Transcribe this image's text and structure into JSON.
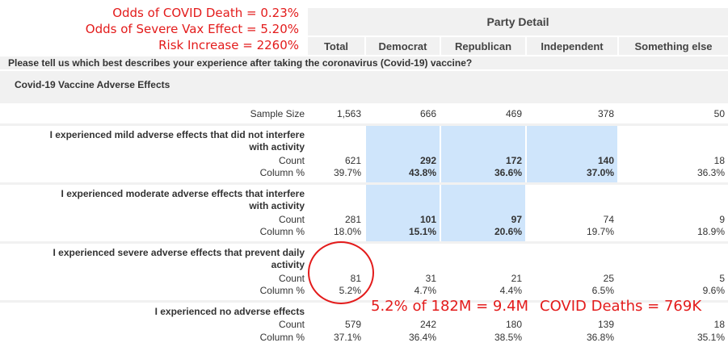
{
  "annotations": {
    "odds_death": "Odds of COVID Death = 0.23%",
    "odds_severe": "Odds of Severe Vax Effect = 5.20%",
    "risk_increase": "Risk Increase = 2260%",
    "pop_calc": "5.2% of 182M = 9.4M",
    "covid_deaths": "COVID Deaths = 769K"
  },
  "header": {
    "party_detail": "Party Detail",
    "columns": [
      "Total",
      "Democrat",
      "Republican",
      "Independent",
      "Something else"
    ]
  },
  "question": "Please tell us which best describes your experience after taking the coronavirus (Covid-19) vaccine?",
  "section_title": "Covid-19 Vaccine Adverse Effects",
  "sample_size": {
    "label": "Sample Size",
    "values": [
      "1,563",
      "666",
      "469",
      "378",
      "50"
    ]
  },
  "count_label": "Count",
  "column_pct_label": "Column %",
  "rows": [
    {
      "label_line1": "I experienced mild adverse effects that did not interfere",
      "label_line2": "with activity",
      "counts": [
        "621",
        "292",
        "172",
        "140",
        "18"
      ],
      "percents": [
        "39.7%",
        "43.8%",
        "36.6%",
        "37.0%",
        "36.3%"
      ]
    },
    {
      "label_line1": "I experienced moderate adverse effects that interfere",
      "label_line2": "with activity",
      "counts": [
        "281",
        "101",
        "97",
        "74",
        "9"
      ],
      "percents": [
        "18.0%",
        "15.1%",
        "20.6%",
        "19.7%",
        "18.9%"
      ]
    },
    {
      "label_line1": "I experienced severe adverse effects that prevent daily",
      "label_line2": "activity",
      "counts": [
        "81",
        "31",
        "21",
        "25",
        "5"
      ],
      "percents": [
        "5.2%",
        "4.7%",
        "4.4%",
        "6.5%",
        "9.6%"
      ]
    },
    {
      "label_line1": "I experienced no adverse effects",
      "label_line2": "",
      "counts": [
        "579",
        "242",
        "180",
        "139",
        "18"
      ],
      "percents": [
        "37.1%",
        "36.4%",
        "38.5%",
        "36.8%",
        "35.1%"
      ]
    }
  ],
  "colors": {
    "annotation_red": "#e31b1b",
    "highlight_blue": "#cfe5fb",
    "header_gray": "#f1f1f1"
  }
}
